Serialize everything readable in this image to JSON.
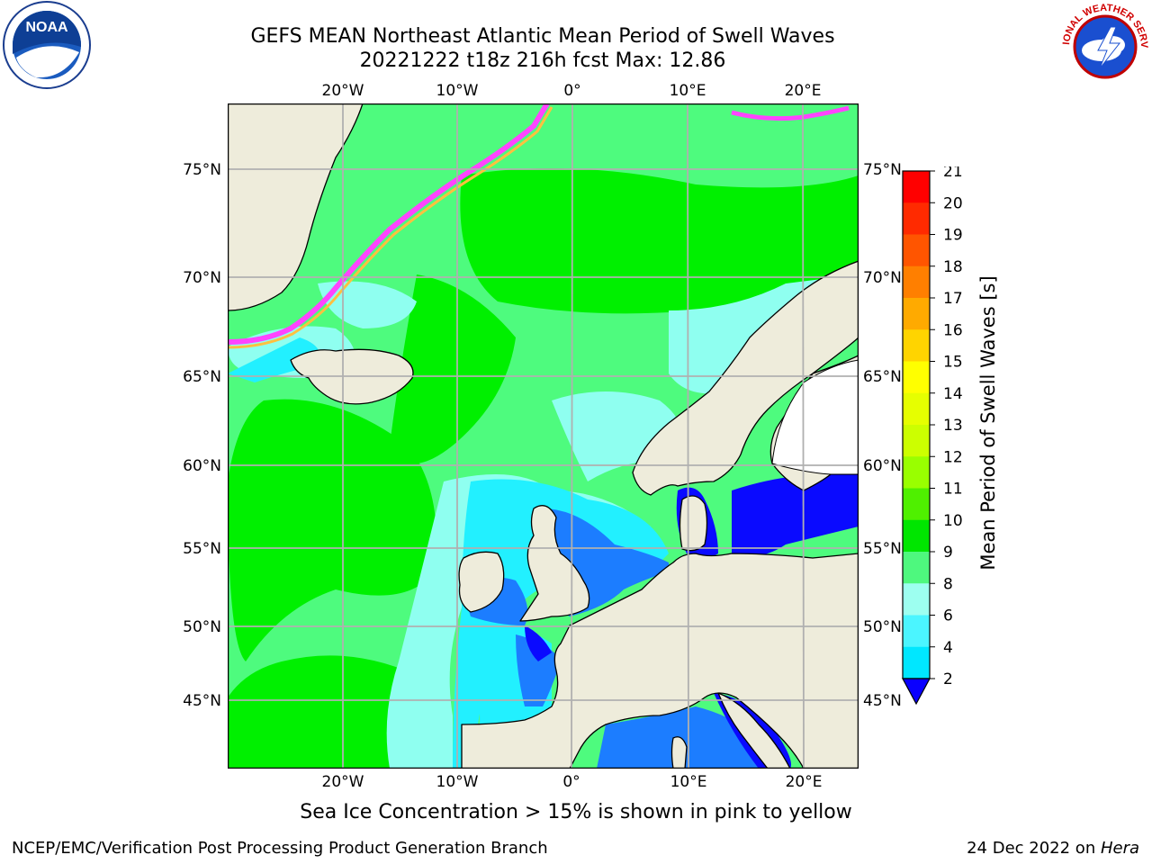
{
  "header": {
    "title_line1": "GEFS MEAN Northeast Atlantic Mean Period of Swell Waves",
    "title_line2": "20221222 t18z 216h fcst   Max: 12.86"
  },
  "logos": {
    "left": "NOAA",
    "right": "NATIONAL WEATHER SERVICE"
  },
  "map": {
    "lon_labels": [
      "20°W",
      "10°W",
      "0°",
      "10°E",
      "20°E"
    ],
    "lat_labels": [
      "75°N",
      "70°N",
      "65°N",
      "60°N",
      "55°N",
      "50°N",
      "45°N"
    ],
    "lon_values": [
      -20,
      -10,
      0,
      10,
      20
    ],
    "lat_values": [
      75,
      70,
      65,
      60,
      55,
      50,
      45
    ],
    "colors": {
      "land": "#eeecdb",
      "ice_free": "#ffffff",
      "ocean_green": "#4efb7e",
      "ocean_bright_green": "#00f000",
      "ocean_light_cyan": "#8ffff0",
      "ocean_cyan": "#22f0ff",
      "ocean_blue": "#1c7dff",
      "ocean_dark_blue": "#0a0aff",
      "ice_pink": "#ff44ff",
      "gridline": "#b0b0b0"
    }
  },
  "colorbar": {
    "label": "Mean Period of Swell Waves [s]",
    "ticks": [
      "21",
      "20",
      "19",
      "18",
      "17",
      "16",
      "15",
      "14",
      "13",
      "12",
      "11",
      "10",
      "9",
      "8",
      "6",
      "4",
      "2"
    ],
    "colors": [
      "#ff0000",
      "#ff2a00",
      "#ff5500",
      "#ff7f00",
      "#ffaa00",
      "#ffd400",
      "#ffff00",
      "#e6ff00",
      "#ccff00",
      "#99ff00",
      "#4ff000",
      "#00e600",
      "#4ef87e",
      "#9dfff0",
      "#4bf5ff",
      "#00e7ff",
      "#1f7cff"
    ],
    "under_color": "#0a00ff"
  },
  "note": "Sea Ice Concentration > 15% is shown in pink to yellow",
  "footer": {
    "left": "NCEP/EMC/Verification Post Processing Product Generation Branch",
    "right_date": "24 Dec 2022 on ",
    "right_host": "Hera"
  }
}
